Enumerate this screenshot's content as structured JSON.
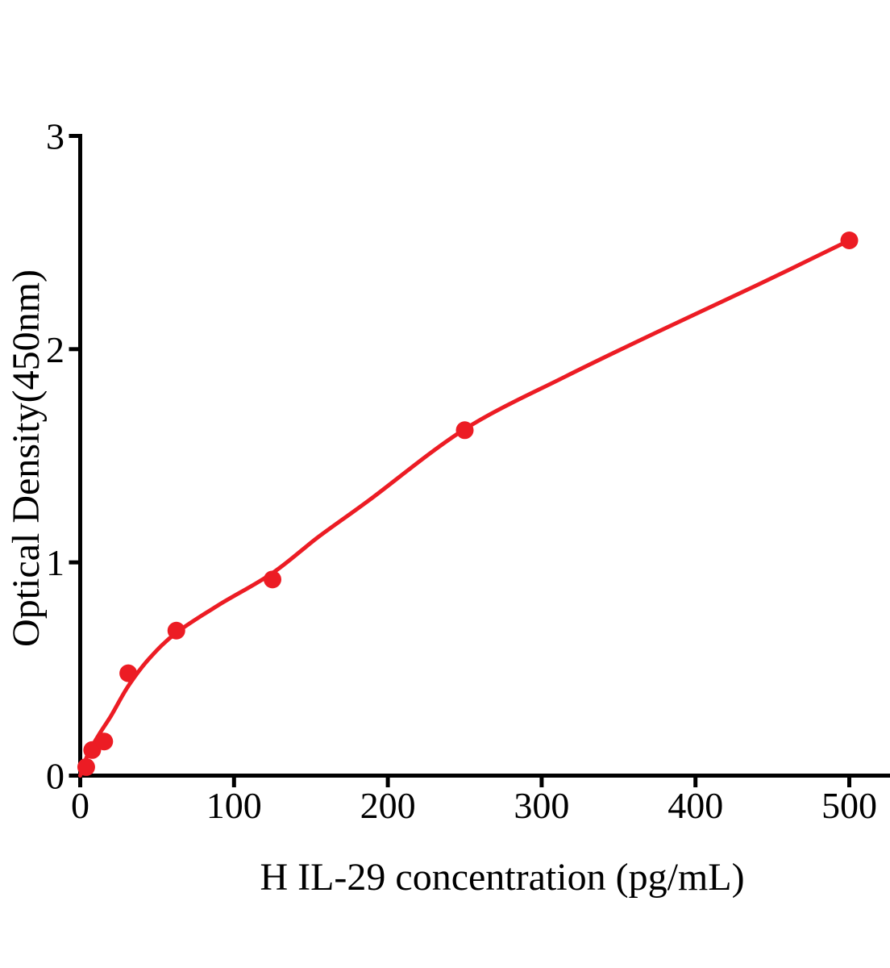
{
  "figure": {
    "background_color": "#ffffff",
    "axis_color": "#000000",
    "accent_color": "#ec1c24"
  },
  "chart_data": {
    "type": "scatter",
    "title": "",
    "xlabel": "H IL-29 concentration (pg/mL)",
    "ylabel": "Optical Density(450nm)",
    "xlim": [
      0,
      527
    ],
    "ylim": [
      0,
      3
    ],
    "x_ticks": [
      0,
      100,
      200,
      300,
      400,
      500
    ],
    "y_ticks": [
      0,
      1,
      2,
      3
    ],
    "grid": false,
    "legend_position": "none",
    "series": [
      {
        "name": "standard-points",
        "type": "scatter",
        "marker": "circle",
        "marker_radius_px": 11,
        "color": "#ec1c24",
        "points": [
          {
            "x": 3.9,
            "y": 0.04
          },
          {
            "x": 7.8,
            "y": 0.12
          },
          {
            "x": 15.6,
            "y": 0.16
          },
          {
            "x": 31.25,
            "y": 0.48
          },
          {
            "x": 62.5,
            "y": 0.68
          },
          {
            "x": 125,
            "y": 0.92
          },
          {
            "x": 250,
            "y": 1.62
          },
          {
            "x": 500,
            "y": 2.51
          }
        ]
      },
      {
        "name": "fitted-curve",
        "type": "line",
        "color": "#ec1c24",
        "stroke_width_px": 5,
        "points": [
          {
            "x": 0,
            "y": 0.0
          },
          {
            "x": 5,
            "y": 0.1
          },
          {
            "x": 12,
            "y": 0.19
          },
          {
            "x": 20,
            "y": 0.28
          },
          {
            "x": 31.25,
            "y": 0.42
          },
          {
            "x": 45,
            "y": 0.55
          },
          {
            "x": 62.5,
            "y": 0.67
          },
          {
            "x": 90,
            "y": 0.8
          },
          {
            "x": 125,
            "y": 0.95
          },
          {
            "x": 155,
            "y": 1.12
          },
          {
            "x": 187.5,
            "y": 1.29
          },
          {
            "x": 250,
            "y": 1.625
          },
          {
            "x": 315,
            "y": 1.87
          },
          {
            "x": 375,
            "y": 2.08
          },
          {
            "x": 440,
            "y": 2.3
          },
          {
            "x": 500,
            "y": 2.51
          }
        ]
      }
    ]
  }
}
